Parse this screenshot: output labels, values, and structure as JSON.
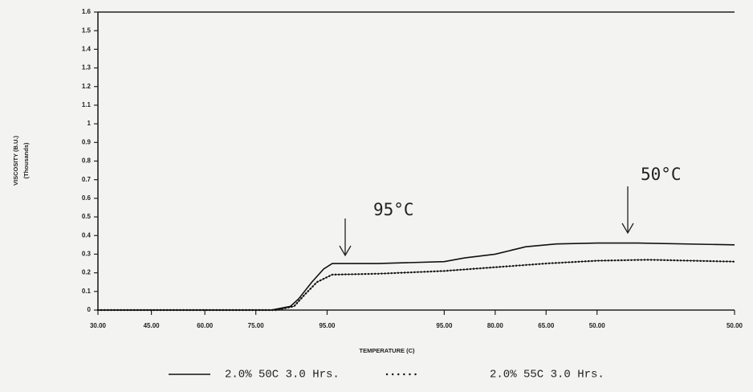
{
  "chart_data": {
    "type": "line",
    "x_label": "TEMPERATURE (C)",
    "y_label": "VISCOSITY (B.U.)",
    "y_label_sub": "(Thousands)",
    "xlim": [
      0,
      125
    ],
    "xticks": [
      {
        "value": 0,
        "label": "30.00"
      },
      {
        "value": 10.5,
        "label": "45.00"
      },
      {
        "value": 21,
        "label": "60.00"
      },
      {
        "value": 31,
        "label": "75.00"
      },
      {
        "value": 45,
        "label": "95.00"
      },
      {
        "value": 68,
        "label": "95.00"
      },
      {
        "value": 78,
        "label": "80.00"
      },
      {
        "value": 88,
        "label": "65.00"
      },
      {
        "value": 98,
        "label": "50.00"
      },
      {
        "value": 125,
        "label": "50.00"
      }
    ],
    "ylim": [
      0,
      1.6
    ],
    "yticks": [
      0,
      0.1,
      0.2,
      0.3,
      0.4,
      0.5,
      0.6,
      0.7,
      0.8,
      0.9,
      1,
      1.1,
      1.2,
      1.3,
      1.4,
      1.5,
      1.6
    ],
    "series": [
      {
        "name": "2.0% 50C 3.0 Hrs.",
        "color": "#111111",
        "style": "solid",
        "x": [
          0,
          34,
          37.8,
          39.4,
          42,
          44.3,
          46,
          55,
          68,
          72,
          78,
          84,
          90,
          98,
          106,
          125
        ],
        "values": [
          0,
          0,
          0.02,
          0.06,
          0.15,
          0.22,
          0.25,
          0.25,
          0.26,
          0.28,
          0.3,
          0.34,
          0.355,
          0.36,
          0.36,
          0.35
        ]
      },
      {
        "name": "2.0% 55C 3.0 Hrs.",
        "color": "#111111",
        "style": "dotted",
        "x": [
          0,
          35,
          38.5,
          40.5,
          43,
          46,
          55,
          68,
          78,
          88,
          98,
          108,
          125
        ],
        "values": [
          0,
          0,
          0.02,
          0.08,
          0.15,
          0.19,
          0.195,
          0.21,
          0.23,
          0.25,
          0.265,
          0.27,
          0.26
        ]
      }
    ],
    "annotations": [
      "95°C",
      "50°C"
    ]
  }
}
